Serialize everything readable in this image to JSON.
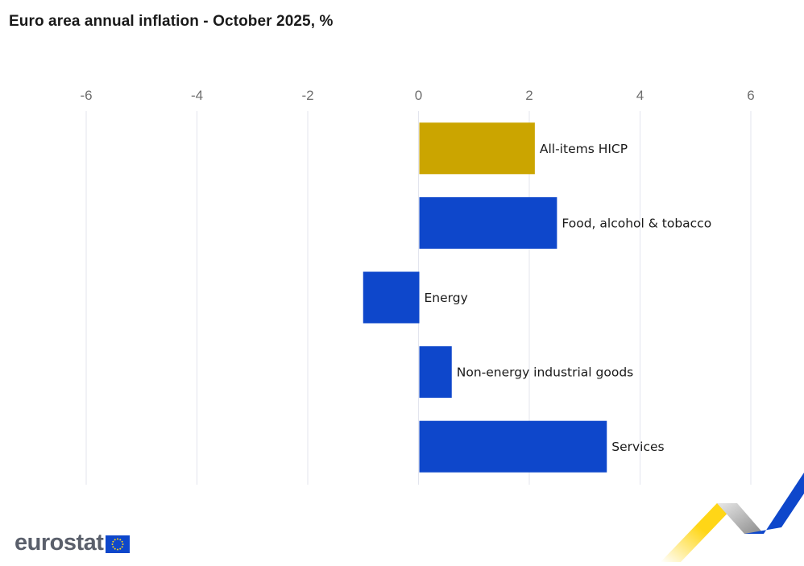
{
  "title": "Euro area annual inflation - October 2025, %",
  "chart_data": {
    "type": "bar",
    "orientation": "horizontal",
    "categories": [
      "All-items HICP",
      "Food, alcohol & tobacco",
      "Energy",
      "Non-energy industrial goods",
      "Services"
    ],
    "values": [
      2.1,
      2.5,
      -1.0,
      0.6,
      3.4
    ],
    "bar_colors": [
      "#cba500",
      "#0e47cb",
      "#0e47cb",
      "#0e47cb",
      "#0e47cb"
    ],
    "xlim": [
      -6,
      6
    ],
    "x_ticks": [
      -6,
      -4,
      -2,
      0,
      2,
      4,
      6
    ],
    "x_tick_position": "top",
    "grid": true,
    "title": "Euro area annual inflation - October 2025, %"
  },
  "branding": {
    "logo_text": "eurostat",
    "flag_icon": "eu-flag-icon",
    "colors": {
      "flag_blue": "#0e47cb",
      "accent_yellow": "#ffd617",
      "accent_grey": "#9a9a9a"
    }
  }
}
